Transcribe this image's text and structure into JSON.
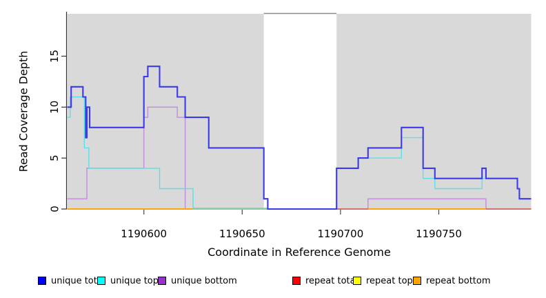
{
  "figure": {
    "xlabel": "Coordinate in Reference Genome",
    "ylabel": "Read Coverage Depth"
  },
  "chart_data": {
    "type": "line",
    "step": true,
    "title": "",
    "xlabel": "Coordinate in Reference Genome",
    "ylabel": "Read Coverage Depth",
    "xlim": [
      1190561,
      1190797
    ],
    "ylim": [
      0,
      19.16
    ],
    "x_ticks": [
      1190600,
      1190650,
      1190700,
      1190750
    ],
    "y_ticks": [
      0,
      5,
      10,
      15
    ],
    "grid": false,
    "panel_color": "#d9d9d9",
    "panels": [
      {
        "name": "left-gray-region",
        "x0": 1190561,
        "x1": 1190661
      },
      {
        "name": "right-gray-region",
        "x0": 1190698,
        "x1": 1190797
      }
    ],
    "gap_top_line": {
      "x0": 1190661,
      "x1": 1190698,
      "color": "#8a8a8a"
    },
    "legend_position": "bottom",
    "legend": [
      {
        "label": "unique total",
        "color": "#0000ff"
      },
      {
        "label": "unique top",
        "color": "#00ffff"
      },
      {
        "label": "unique bottom",
        "color": "#9932cc"
      },
      {
        "label": "repeat total",
        "color": "#ff0000"
      },
      {
        "label": "repeat top",
        "color": "#ffff00"
      },
      {
        "label": "repeat bottom",
        "color": "#ffa500"
      }
    ],
    "series": [
      {
        "name": "unique bottom",
        "line_color": "#c48fdc",
        "width": 1.5,
        "segments": [
          [
            [
              1190561,
              1
            ],
            [
              1190571,
              4
            ],
            [
              1190600,
              9
            ],
            [
              1190602,
              10
            ],
            [
              1190617,
              9
            ],
            [
              1190621,
              0
            ],
            [
              1190714,
              1
            ],
            [
              1190774,
              0
            ],
            [
              1190797,
              0
            ]
          ]
        ]
      },
      {
        "name": "repeat top",
        "line_color": "#ffff00",
        "width": 1.4,
        "segments": [
          [
            [
              1190561,
              0
            ],
            [
              1190797,
              0
            ]
          ]
        ]
      },
      {
        "name": "repeat total",
        "line_color": "#cc4c6e",
        "width": 1.4,
        "segments": [
          [
            [
              1190561,
              0
            ],
            [
              1190797,
              0
            ]
          ]
        ]
      },
      {
        "name": "repeat bottom",
        "line_color": "#ffa500",
        "width": 1.8,
        "segments": [
          [
            [
              1190561,
              0
            ],
            [
              1190625,
              0
            ]
          ],
          [
            [
              1190714,
              0
            ],
            [
              1190774,
              0
            ]
          ]
        ]
      },
      {
        "name": "unique top",
        "line_color": "#5cdfe6",
        "width": 1.4,
        "segments": [
          [
            [
              1190561,
              9
            ],
            [
              1190562.5,
              11
            ],
            [
              1190569.7,
              6
            ],
            [
              1190572,
              4
            ],
            [
              1190608,
              2
            ],
            [
              1190625,
              0
            ],
            [
              1190698,
              4
            ],
            [
              1190709,
              5
            ],
            [
              1190731,
              7
            ],
            [
              1190742,
              3
            ],
            [
              1190748,
              2
            ],
            [
              1190772,
              3
            ],
            [
              1190790,
              2
            ],
            [
              1190791,
              1
            ],
            [
              1190797,
              1
            ]
          ]
        ]
      },
      {
        "name": "zero overlay",
        "line_color": "#8fcb8f",
        "width": 1.5,
        "segments": [
          [
            [
              1190625,
              0.07
            ],
            [
              1190663,
              0.07
            ]
          ]
        ]
      },
      {
        "name": "unique total",
        "line_color": "#3a3ae8",
        "width": 2.1,
        "segments": [
          [
            [
              1190561,
              10
            ],
            [
              1190563,
              12
            ],
            [
              1190569,
              11
            ],
            [
              1190570.4,
              7
            ],
            [
              1190571,
              10
            ],
            [
              1190572.4,
              8
            ],
            [
              1190600,
              13
            ],
            [
              1190602,
              14
            ],
            [
              1190608,
              12
            ],
            [
              1190617,
              11
            ],
            [
              1190621,
              9
            ],
            [
              1190633,
              6
            ],
            [
              1190661,
              1
            ],
            [
              1190663,
              0
            ],
            [
              1190698,
              4
            ],
            [
              1190709,
              5
            ],
            [
              1190714,
              6
            ],
            [
              1190731,
              8
            ],
            [
              1190742,
              4
            ],
            [
              1190748,
              3
            ],
            [
              1190772,
              4
            ],
            [
              1190774,
              3
            ],
            [
              1190790,
              2
            ],
            [
              1190791,
              1
            ],
            [
              1190797,
              1
            ]
          ]
        ]
      }
    ]
  }
}
